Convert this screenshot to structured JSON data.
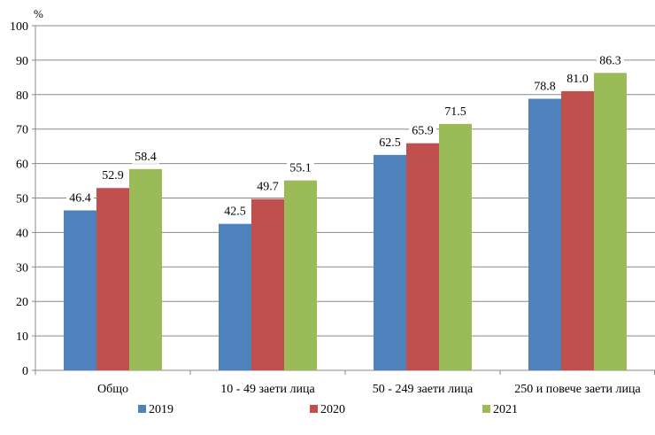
{
  "chart_data": {
    "type": "bar",
    "title": "",
    "ylabel": "%",
    "xlabel": "",
    "ylim": [
      0,
      100
    ],
    "yticks": [
      "0",
      "10",
      "20",
      "30",
      "40",
      "50",
      "60",
      "70",
      "80",
      "90",
      "100"
    ],
    "grid": true,
    "legend_position": "bottom",
    "categories": [
      "Общо",
      "10 - 49 заети лица",
      "50 - 249 заети лица",
      "250 и повече заети лица"
    ],
    "series": [
      {
        "name": "2019",
        "color": "#4F81BD",
        "values": [
          46.4,
          42.5,
          62.5,
          78.8
        ],
        "labels": [
          "46.4",
          "42.5",
          "62.5",
          "78.8"
        ]
      },
      {
        "name": "2020",
        "color": "#C0504D",
        "values": [
          52.9,
          49.7,
          65.9,
          81.0
        ],
        "labels": [
          "52.9",
          "49.7",
          "65.9",
          "81.0"
        ]
      },
      {
        "name": "2021",
        "color": "#9BBB59",
        "values": [
          58.4,
          55.1,
          71.5,
          86.3
        ],
        "labels": [
          "58.4",
          "55.1",
          "71.5",
          "86.3"
        ]
      }
    ]
  }
}
